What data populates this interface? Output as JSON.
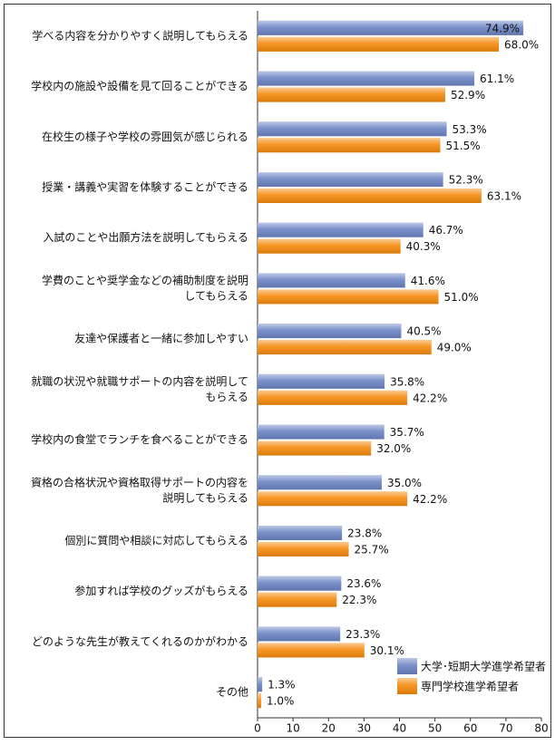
{
  "chart_data": {
    "type": "bar",
    "orientation": "horizontal",
    "categories": [
      [
        "学べる内容を分かりやすく説明してもらえる"
      ],
      [
        "学校内の施設や設備を見て回ることができる"
      ],
      [
        "在校生の様子や学校の雰囲気が感じられる"
      ],
      [
        "授業・講義や実習を体験することができる"
      ],
      [
        "入試のことや出願方法を説明してもらえる"
      ],
      [
        "学費のことや奨学金などの補助制度を説明",
        "してもらえる"
      ],
      [
        "友達や保護者と一緒に参加しやすい"
      ],
      [
        "就職の状況や就職サポートの内容を説明して",
        "もらえる"
      ],
      [
        "学校内の食堂でランチを食べることができる"
      ],
      [
        "資格の合格状況や資格取得サポートの内容を",
        "説明してもらえる"
      ],
      [
        "個別に質問や相談に対応してもらえる"
      ],
      [
        "参加すれば学校のグッズがもらえる"
      ],
      [
        "どのような先生が教えてくれるのかがわかる"
      ],
      [
        "その他"
      ]
    ],
    "series": [
      {
        "name": "大学･短期大学進学希望者",
        "color": "#6c84c4",
        "values": [
          74.9,
          61.1,
          53.3,
          52.3,
          46.7,
          41.6,
          40.5,
          35.8,
          35.7,
          35.0,
          23.8,
          23.6,
          23.3,
          1.3
        ],
        "value_labels": [
          "74.9%",
          "61.1%",
          "53.3%",
          "52.3%",
          "46.7%",
          "41.6%",
          "40.5%",
          "35.8%",
          "35.7%",
          "35.0%",
          "23.8%",
          "23.6%",
          "23.3%",
          "1.3%"
        ]
      },
      {
        "name": "専門学校進学希望者",
        "color": "#f58a0c",
        "values": [
          68.0,
          52.9,
          51.5,
          63.1,
          40.3,
          51.0,
          49.0,
          42.2,
          32.0,
          42.2,
          25.7,
          22.3,
          30.1,
          1.0
        ],
        "value_labels": [
          "68.0%",
          "52.9%",
          "51.5%",
          "63.1%",
          "40.3%",
          "51.0%",
          "49.0%",
          "42.2%",
          "32.0%",
          "42.2%",
          "25.7%",
          "22.3%",
          "30.1%",
          "1.0%"
        ]
      }
    ],
    "xlim": [
      0,
      80
    ],
    "xticks": [
      0,
      10,
      20,
      30,
      40,
      50,
      60,
      70,
      80
    ],
    "legend": "lower right"
  }
}
